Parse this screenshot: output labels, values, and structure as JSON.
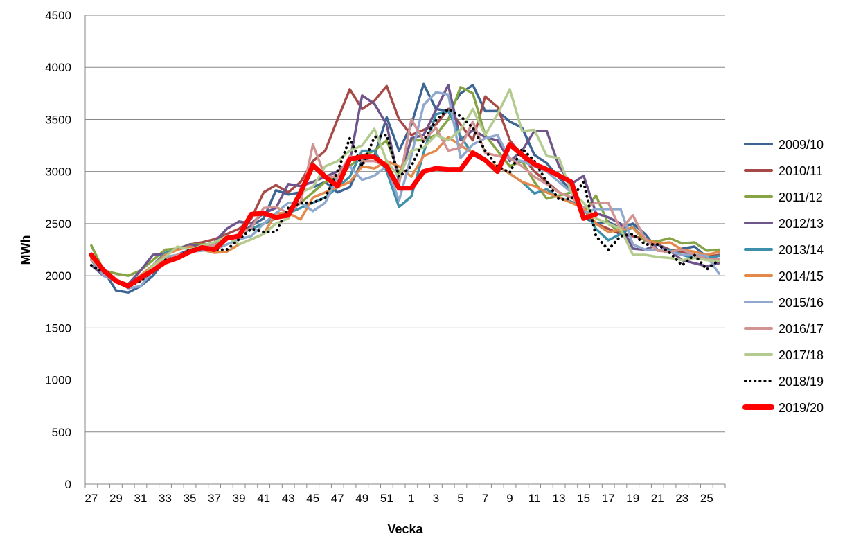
{
  "chart_data": {
    "type": "line",
    "title": "",
    "xlabel": "Vecka",
    "ylabel": "MWh",
    "ylim": [
      0,
      4500
    ],
    "yticks": [
      0,
      500,
      1000,
      1500,
      2000,
      2500,
      3000,
      3500,
      4000,
      4500
    ],
    "grid": "horizontal",
    "legend_position": "right",
    "categories": [
      "27",
      "28",
      "29",
      "30",
      "31",
      "32",
      "33",
      "34",
      "35",
      "36",
      "37",
      "38",
      "39",
      "40",
      "41",
      "42",
      "43",
      "44",
      "45",
      "46",
      "47",
      "48",
      "49",
      "50",
      "51",
      "52",
      "1",
      "2",
      "3",
      "4",
      "5",
      "6",
      "7",
      "8",
      "9",
      "10",
      "11",
      "12",
      "13",
      "14",
      "15",
      "16",
      "17",
      "18",
      "19",
      "20",
      "21",
      "22",
      "23",
      "24",
      "25",
      "26"
    ],
    "x_tick_labels": [
      "27",
      "29",
      "31",
      "33",
      "35",
      "37",
      "39",
      "41",
      "43",
      "45",
      "47",
      "49",
      "51",
      "1",
      "3",
      "5",
      "7",
      "9",
      "11",
      "13",
      "15",
      "17",
      "19",
      "21",
      "23",
      "25"
    ],
    "series": [
      {
        "name": "2009/10",
        "color": "#3c6594",
        "style": "solid",
        "values": [
          2200,
          2050,
          1860,
          1840,
          1900,
          2000,
          2150,
          2200,
          2250,
          2300,
          2300,
          2350,
          2400,
          2480,
          2550,
          2820,
          2780,
          2800,
          2850,
          2900,
          2800,
          2850,
          3100,
          3150,
          3520,
          3200,
          3450,
          3840,
          3600,
          3580,
          3750,
          3830,
          3580,
          3580,
          3480,
          3420,
          3160,
          3080,
          2940,
          2820,
          2560,
          2500,
          2520,
          2450,
          2500,
          2400,
          2250,
          2220,
          2260,
          2280,
          2180,
          2150
        ]
      },
      {
        "name": "2010/11",
        "color": "#a64a48",
        "style": "solid",
        "values": [
          2150,
          2050,
          1950,
          1920,
          2000,
          2100,
          2200,
          2250,
          2300,
          2320,
          2350,
          2400,
          2450,
          2550,
          2800,
          2870,
          2800,
          2900,
          3100,
          3200,
          3500,
          3790,
          3600,
          3680,
          3820,
          3500,
          3350,
          3400,
          3450,
          3600,
          3450,
          3300,
          3720,
          3620,
          3300,
          3150,
          3000,
          2900,
          2800,
          2750,
          2650,
          2500,
          2450,
          2400,
          2380,
          2350,
          2300,
          2250,
          2230,
          2200,
          2180,
          2200
        ]
      },
      {
        "name": "2011/12",
        "color": "#86a444",
        "style": "solid",
        "values": [
          2290,
          2050,
          2020,
          2000,
          2050,
          2150,
          2250,
          2260,
          2300,
          2300,
          2300,
          2350,
          2400,
          2450,
          2500,
          2550,
          2600,
          2700,
          2800,
          2900,
          2950,
          3050,
          3150,
          3200,
          3300,
          2980,
          3300,
          3300,
          3350,
          3500,
          3810,
          3750,
          3350,
          3200,
          3050,
          3100,
          2900,
          2740,
          2770,
          2800,
          2600,
          2770,
          2500,
          2420,
          2460,
          2330,
          2330,
          2360,
          2310,
          2320,
          2240,
          2250
        ]
      },
      {
        "name": "2012/13",
        "color": "#6e558b",
        "style": "solid",
        "values": [
          2100,
          2000,
          1950,
          1920,
          2050,
          2200,
          2210,
          2250,
          2300,
          2280,
          2320,
          2450,
          2520,
          2500,
          2600,
          2650,
          2880,
          2860,
          2900,
          2950,
          3000,
          3100,
          3730,
          3650,
          3450,
          2900,
          3320,
          3350,
          3590,
          3830,
          3300,
          3400,
          3330,
          3300,
          3100,
          3200,
          3390,
          3390,
          3050,
          2880,
          2960,
          2600,
          2560,
          2500,
          2260,
          2250,
          2300,
          2240,
          2150,
          2120,
          2090,
          2120
        ]
      },
      {
        "name": "2013/14",
        "color": "#3e8fab",
        "style": "solid",
        "values": [
          2150,
          2000,
          1950,
          1900,
          2000,
          2100,
          2220,
          2250,
          2280,
          2260,
          2300,
          2350,
          2400,
          2450,
          2500,
          2550,
          2600,
          2650,
          2700,
          2750,
          2850,
          2950,
          3200,
          3200,
          3000,
          2660,
          2760,
          3180,
          3550,
          3580,
          3340,
          3160,
          3100,
          3050,
          2980,
          2900,
          2790,
          2830,
          2750,
          2710,
          2650,
          2450,
          2340,
          2400,
          2470,
          2350,
          2240,
          2250,
          2200,
          2170,
          2170,
          2190
        ]
      },
      {
        "name": "2014/15",
        "color": "#e3894a",
        "style": "solid",
        "values": [
          2170,
          2000,
          1950,
          1900,
          2000,
          2100,
          2200,
          2250,
          2280,
          2250,
          2220,
          2230,
          2300,
          2350,
          2400,
          2600,
          2600,
          2540,
          2750,
          2800,
          2850,
          2900,
          3050,
          3030,
          3100,
          3050,
          2950,
          3150,
          3200,
          3330,
          3250,
          3180,
          3100,
          3050,
          2980,
          2900,
          2860,
          2800,
          2750,
          2700,
          2650,
          2500,
          2420,
          2440,
          2460,
          2350,
          2310,
          2320,
          2250,
          2230,
          2200,
          2230
        ]
      },
      {
        "name": "2015/16",
        "color": "#8ea9cd",
        "style": "solid",
        "values": [
          2160,
          2000,
          1950,
          1880,
          1900,
          2050,
          2180,
          2200,
          2230,
          2240,
          2250,
          2300,
          2350,
          2380,
          2500,
          2600,
          2700,
          2700,
          2620,
          2700,
          2950,
          3050,
          2920,
          2960,
          3050,
          2720,
          3150,
          3640,
          3760,
          3740,
          3130,
          3260,
          3320,
          3350,
          3120,
          3100,
          3050,
          3000,
          2900,
          2800,
          2600,
          2640,
          2640,
          2640,
          2300,
          2250,
          2250,
          2230,
          2200,
          2200,
          2190,
          2020
        ]
      },
      {
        "name": "2016/17",
        "color": "#d19492",
        "style": "solid",
        "values": [
          2150,
          2050,
          1960,
          1900,
          1950,
          2100,
          2150,
          2200,
          2220,
          2280,
          2290,
          2350,
          2400,
          2460,
          2650,
          2660,
          2600,
          2700,
          3260,
          2950,
          2950,
          3150,
          3100,
          3100,
          3050,
          2880,
          3500,
          3300,
          3420,
          3200,
          3230,
          3480,
          3180,
          3150,
          3130,
          3050,
          2950,
          2880,
          2800,
          2750,
          2650,
          2700,
          2700,
          2440,
          2580,
          2350,
          2240,
          2230,
          2250,
          2200,
          2160,
          2160
        ]
      },
      {
        "name": "2017/18",
        "color": "#b3cb8e",
        "style": "solid",
        "values": [
          2170,
          2050,
          1960,
          1920,
          1960,
          2100,
          2180,
          2280,
          2250,
          2290,
          2320,
          2380,
          2300,
          2350,
          2400,
          2500,
          2550,
          2800,
          2850,
          3050,
          3100,
          3200,
          3250,
          3410,
          3100,
          2950,
          3200,
          3230,
          3350,
          3300,
          3400,
          3600,
          3350,
          3550,
          3790,
          3390,
          3400,
          3150,
          3130,
          2800,
          2700,
          2550,
          2500,
          2450,
          2200,
          2200,
          2180,
          2170,
          2150,
          2170,
          2150,
          2140
        ]
      },
      {
        "name": "2018/19",
        "color": "#000000",
        "style": "dotted",
        "values": [
          2100,
          2030,
          1960,
          1900,
          1950,
          2050,
          2150,
          2180,
          2250,
          2260,
          2250,
          2250,
          2350,
          2450,
          2420,
          2420,
          2650,
          2700,
          2700,
          2750,
          3000,
          3320,
          3050,
          3330,
          3350,
          2950,
          3050,
          3300,
          3490,
          3600,
          3530,
          3420,
          3200,
          3050,
          2990,
          3220,
          3100,
          2900,
          2730,
          2740,
          2900,
          2380,
          2250,
          2380,
          2400,
          2300,
          2300,
          2220,
          2100,
          2200,
          2060,
          2150
        ]
      },
      {
        "name": "2019/20",
        "color": "#ff0000",
        "style": "thick",
        "values": [
          2200,
          2050,
          1950,
          1900,
          1980,
          2050,
          2130,
          2170,
          2230,
          2270,
          2250,
          2360,
          2380,
          2590,
          2600,
          2560,
          2580,
          2800,
          3060,
          2950,
          2860,
          3120,
          3140,
          3140,
          3050,
          2840,
          2840,
          3000,
          3030,
          3020,
          3020,
          3180,
          3110,
          3000,
          3260,
          3160,
          3070,
          3020,
          2960,
          2900,
          2550,
          2590,
          null,
          null,
          null,
          null,
          null,
          null,
          null,
          null,
          null,
          null
        ]
      }
    ]
  }
}
